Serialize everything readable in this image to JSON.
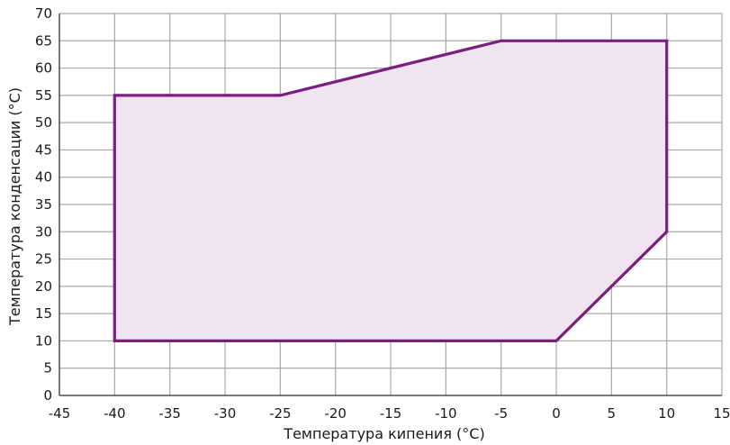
{
  "chart_data": {
    "type": "area",
    "xlabel": "Температура кипения (°C)",
    "ylabel": "Температура конденсации (°C)",
    "xlim": [
      -45,
      15
    ],
    "ylim": [
      0,
      70
    ],
    "x_ticks": [
      -45,
      -40,
      -35,
      -30,
      -25,
      -20,
      -15,
      -10,
      -5,
      0,
      5,
      10,
      15
    ],
    "y_ticks": [
      0,
      5,
      10,
      15,
      20,
      25,
      30,
      35,
      40,
      45,
      50,
      55,
      60,
      65,
      70
    ],
    "grid": true,
    "legend": "none",
    "series": [
      {
        "points": [
          {
            "x": -40,
            "y": 10
          },
          {
            "x": -40,
            "y": 55
          },
          {
            "x": -25,
            "y": 55
          },
          {
            "x": -5,
            "y": 65
          },
          {
            "x": 10,
            "y": 65
          },
          {
            "x": 10,
            "y": 30
          },
          {
            "x": 0,
            "y": 10
          }
        ],
        "stroke_color": "#7b1f7f",
        "fill_color": "#f0e4f0"
      }
    ],
    "grid_color": "#a9a9a9",
    "axis_color": "#555555"
  }
}
